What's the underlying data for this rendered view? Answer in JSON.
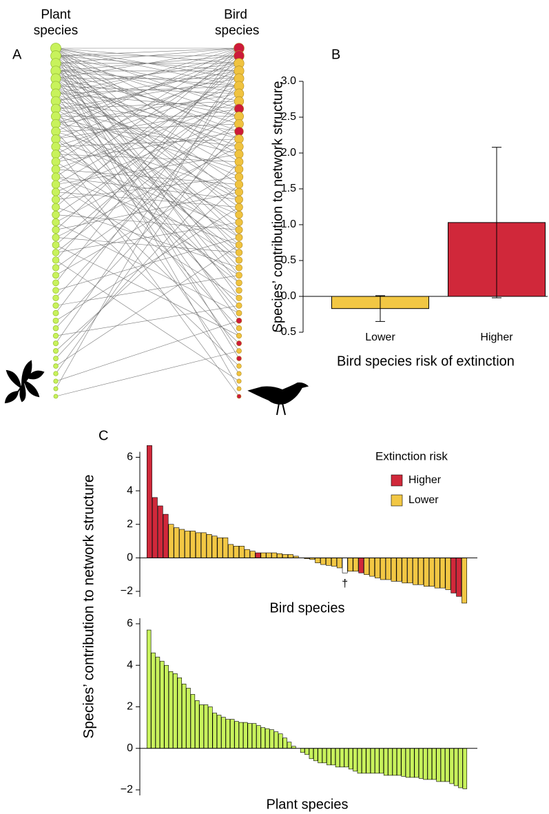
{
  "chart_data": [
    {
      "type": "network",
      "panel": "A",
      "plant_label": "Plant species",
      "bird_label": "Bird species",
      "plants": 47,
      "bird_risk": [
        "Higher",
        "Higher",
        "Lower",
        "Lower",
        "Lower",
        "Lower",
        "Lower",
        "Lower",
        "Higher",
        "Lower",
        "Lower",
        "Higher",
        "Lower",
        "Lower",
        "Lower",
        "Lower",
        "Lower",
        "Lower",
        "Lower",
        "Lower",
        "Lower",
        "Lower",
        "Lower",
        "Lower",
        "Lower",
        "Lower",
        "Lower",
        "Lower",
        "Lower",
        "Lower",
        "Lower",
        "Lower",
        "Lower",
        "Lower",
        "Lower",
        "Lower",
        "Higher",
        "Lower",
        "Lower",
        "Higher",
        "Lower",
        "Higher",
        "Lower",
        "Lower",
        "Lower",
        "Lower",
        "Higher"
      ],
      "colors": {
        "plant": "#c8f25c",
        "Lower": "#f0c340",
        "Higher": "#cc1a3a"
      },
      "links": [
        [
          0,
          0
        ],
        [
          0,
          2
        ],
        [
          0,
          4
        ],
        [
          0,
          5
        ],
        [
          0,
          8
        ],
        [
          0,
          12
        ],
        [
          0,
          15
        ],
        [
          0,
          20
        ],
        [
          0,
          27
        ],
        [
          0,
          33
        ],
        [
          1,
          0
        ],
        [
          1,
          1
        ],
        [
          1,
          3
        ],
        [
          1,
          6
        ],
        [
          1,
          9
        ],
        [
          1,
          14
        ],
        [
          1,
          22
        ],
        [
          1,
          30
        ],
        [
          1,
          41
        ],
        [
          2,
          0
        ],
        [
          2,
          2
        ],
        [
          2,
          7
        ],
        [
          2,
          11
        ],
        [
          2,
          18
        ],
        [
          2,
          25
        ],
        [
          2,
          36
        ],
        [
          2,
          45
        ],
        [
          3,
          1
        ],
        [
          3,
          3
        ],
        [
          3,
          5
        ],
        [
          3,
          10
        ],
        [
          3,
          16
        ],
        [
          3,
          24
        ],
        [
          3,
          31
        ],
        [
          4,
          0
        ],
        [
          4,
          4
        ],
        [
          4,
          9
        ],
        [
          4,
          13
        ],
        [
          4,
          21
        ],
        [
          4,
          29
        ],
        [
          4,
          38
        ],
        [
          5,
          2
        ],
        [
          5,
          6
        ],
        [
          5,
          12
        ],
        [
          5,
          19
        ],
        [
          5,
          26
        ],
        [
          5,
          35
        ],
        [
          6,
          1
        ],
        [
          6,
          5
        ],
        [
          6,
          8
        ],
        [
          6,
          17
        ],
        [
          6,
          28
        ],
        [
          6,
          40
        ],
        [
          7,
          0
        ],
        [
          7,
          3
        ],
        [
          7,
          11
        ],
        [
          7,
          20
        ],
        [
          7,
          32
        ],
        [
          8,
          4
        ],
        [
          8,
          7
        ],
        [
          8,
          14
        ],
        [
          8,
          23
        ],
        [
          8,
          43
        ],
        [
          9,
          2
        ],
        [
          9,
          9
        ],
        [
          9,
          16
        ],
        [
          9,
          27
        ],
        [
          9,
          34
        ],
        [
          10,
          1
        ],
        [
          10,
          6
        ],
        [
          10,
          13
        ],
        [
          10,
          25
        ],
        [
          11,
          0
        ],
        [
          11,
          10
        ],
        [
          11,
          19
        ],
        [
          11,
          37
        ],
        [
          12,
          3
        ],
        [
          12,
          8
        ],
        [
          12,
          22
        ],
        [
          12,
          31
        ],
        [
          13,
          5
        ],
        [
          13,
          12
        ],
        [
          13,
          28
        ],
        [
          13,
          46
        ],
        [
          14,
          2
        ],
        [
          14,
          15
        ],
        [
          14,
          24
        ],
        [
          15,
          0
        ],
        [
          15,
          11
        ],
        [
          15,
          30
        ],
        [
          16,
          7
        ],
        [
          16,
          18
        ],
        [
          16,
          39
        ],
        [
          17,
          1
        ],
        [
          17,
          20
        ],
        [
          17,
          26
        ],
        [
          18,
          4
        ],
        [
          18,
          14
        ],
        [
          18,
          33
        ],
        [
          19,
          9
        ],
        [
          19,
          21
        ],
        [
          19,
          42
        ],
        [
          20,
          3
        ],
        [
          20,
          17
        ],
        [
          21,
          0
        ],
        [
          21,
          29
        ],
        [
          22,
          6
        ],
        [
          22,
          24
        ],
        [
          23,
          10
        ],
        [
          23,
          35
        ],
        [
          24,
          2
        ],
        [
          24,
          19
        ],
        [
          25,
          13
        ],
        [
          25,
          27
        ],
        [
          26,
          5
        ],
        [
          26,
          38
        ],
        [
          27,
          8
        ],
        [
          27,
          23
        ],
        [
          28,
          1
        ],
        [
          28,
          44
        ],
        [
          29,
          12
        ],
        [
          30,
          16
        ],
        [
          31,
          0
        ],
        [
          32,
          25
        ],
        [
          33,
          7
        ],
        [
          34,
          30
        ],
        [
          35,
          3
        ],
        [
          36,
          21
        ],
        [
          37,
          11
        ],
        [
          38,
          34
        ],
        [
          39,
          4
        ],
        [
          40,
          18
        ],
        [
          41,
          15
        ],
        [
          42,
          26
        ],
        [
          43,
          9
        ],
        [
          44,
          36
        ],
        [
          45,
          2
        ],
        [
          46,
          40
        ]
      ]
    },
    {
      "type": "bar",
      "panel": "B",
      "ylabel": "Species’ contribution to network structure",
      "xlabel": "Bird species risk of extinction",
      "categories": [
        "Lower",
        "Higher"
      ],
      "values": [
        -0.17,
        1.03
      ],
      "errors": [
        0.18,
        1.05
      ],
      "colors": [
        "#f2c744",
        "#d0283a"
      ],
      "ylim": [
        -0.5,
        3.0
      ],
      "yticks": [
        {
          "value": -0.5,
          "label": "−0.5"
        },
        {
          "value": 0,
          "label": "0.0"
        },
        0.5,
        {
          "value": 1,
          "label": "1.0"
        },
        1.5,
        {
          "value": 2,
          "label": "2.0"
        },
        2.5,
        {
          "value": 3,
          "label": "3.0"
        }
      ]
    },
    {
      "type": "bar",
      "panel": "C",
      "ylabel": "Species’ contribution to network structure",
      "xlabel": "Bird species",
      "legend_title": "Extinction risk",
      "legend": [
        {
          "name": "Higher",
          "color": "#d0283a"
        },
        {
          "name": "Lower",
          "color": "#f2c744"
        }
      ],
      "values": [
        6.7,
        3.6,
        3.1,
        2.6,
        2.0,
        1.8,
        1.7,
        1.6,
        1.6,
        1.5,
        1.5,
        1.4,
        1.3,
        1.2,
        1.2,
        0.8,
        0.7,
        0.7,
        0.5,
        0.4,
        0.3,
        0.3,
        0.3,
        0.3,
        0.25,
        0.2,
        0.2,
        0.1,
        0.0,
        -0.05,
        -0.1,
        -0.3,
        -0.4,
        -0.45,
        -0.5,
        -0.6,
        -0.9,
        -0.8,
        -0.8,
        -0.9,
        -1.0,
        -1.1,
        -1.2,
        -1.3,
        -1.3,
        -1.4,
        -1.4,
        -1.5,
        -1.5,
        -1.6,
        -1.6,
        -1.7,
        -1.7,
        -1.8,
        -1.8,
        -1.9,
        -2.1,
        -2.3,
        -2.7
      ],
      "risk": [
        "Higher",
        "Higher",
        "Higher",
        "Higher",
        "Lower",
        "Lower",
        "Lower",
        "Lower",
        "Lower",
        "Lower",
        "Lower",
        "Lower",
        "Lower",
        "Lower",
        "Lower",
        "Lower",
        "Lower",
        "Lower",
        "Lower",
        "Lower",
        "Higher",
        "Lower",
        "Lower",
        "Lower",
        "Lower",
        "Lower",
        "Lower",
        "Lower",
        "Lower",
        "Lower",
        "Lower",
        "Lower",
        "Lower",
        "Lower",
        "Lower",
        "Lower",
        null,
        "Lower",
        "Lower",
        "Higher",
        "Lower",
        "Lower",
        "Lower",
        "Lower",
        "Lower",
        "Lower",
        "Lower",
        "Lower",
        "Lower",
        "Lower",
        "Lower",
        "Lower",
        "Lower",
        "Lower",
        "Lower",
        "Lower",
        "Higher",
        "Higher",
        "Lower"
      ],
      "annotation": {
        "text": "†",
        "bar": 36
      },
      "ylim": [
        -2.7,
        6.8
      ],
      "yticks": [
        {
          "value": -2,
          "label": "−2"
        },
        0,
        2,
        4,
        6
      ]
    },
    {
      "type": "bar",
      "xlabel": "Plant species",
      "color": "#c8f25c",
      "values": [
        5.7,
        4.6,
        4.4,
        4.2,
        4.0,
        3.7,
        3.6,
        3.4,
        3.1,
        2.9,
        2.6,
        2.3,
        2.1,
        2.1,
        2.0,
        1.7,
        1.6,
        1.5,
        1.4,
        1.4,
        1.3,
        1.25,
        1.25,
        1.2,
        1.2,
        1.1,
        1.0,
        0.95,
        0.9,
        0.8,
        0.7,
        0.5,
        0.3,
        0.1,
        0,
        -0.2,
        -0.3,
        -0.5,
        -0.6,
        -0.7,
        -0.7,
        -0.8,
        -0.8,
        -0.9,
        -0.9,
        -0.9,
        -1.0,
        -1.1,
        -1.2,
        -1.2,
        -1.2,
        -1.2,
        -1.2,
        -1.2,
        -1.3,
        -1.3,
        -1.3,
        -1.3,
        -1.35,
        -1.4,
        -1.4,
        -1.4,
        -1.45,
        -1.5,
        -1.5,
        -1.5,
        -1.6,
        -1.6,
        -1.6,
        -1.7,
        -1.8,
        -1.9,
        -1.95
      ],
      "ylim": [
        -2.1,
        6
      ],
      "yticks": [
        {
          "value": -2,
          "label": "−2"
        },
        0,
        2,
        4,
        6
      ]
    }
  ]
}
